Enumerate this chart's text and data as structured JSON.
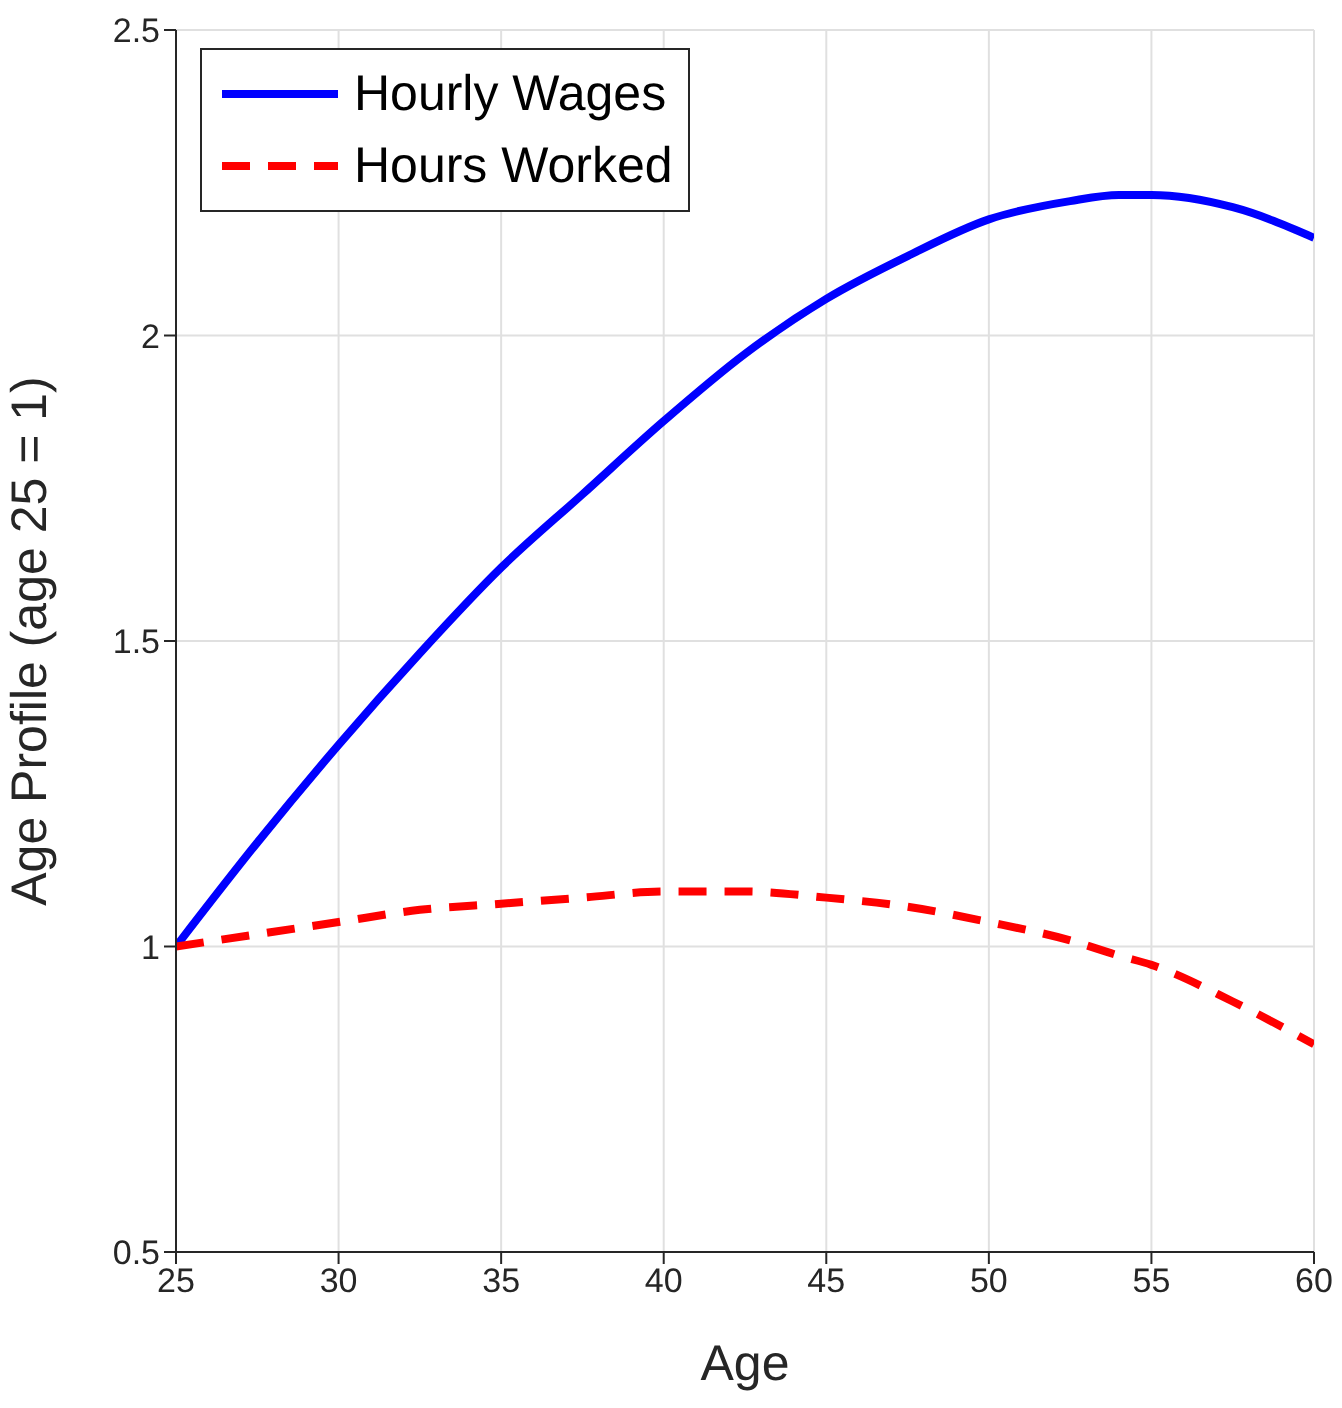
{
  "chart_data": {
    "type": "line",
    "xlabel": "Age",
    "ylabel": "Age Profile  (age 25 = 1)",
    "x": [
      25,
      27.5,
      30,
      32.5,
      35,
      37.5,
      40,
      42.5,
      45,
      47.5,
      50,
      52.5,
      54,
      55,
      57.5,
      60
    ],
    "series": [
      {
        "name": "Hourly Wages",
        "color": "#0000ff",
        "line_style": "solid",
        "values": [
          1.0,
          1.17,
          1.33,
          1.48,
          1.62,
          1.74,
          1.86,
          1.97,
          2.06,
          2.13,
          2.19,
          2.22,
          2.23,
          2.23,
          2.21,
          2.16
        ]
      },
      {
        "name": "Hours Worked",
        "color": "#ff0000",
        "line_style": "dashed",
        "values": [
          1.0,
          1.02,
          1.04,
          1.06,
          1.07,
          1.08,
          1.09,
          1.09,
          1.08,
          1.065,
          1.04,
          1.01,
          0.985,
          0.97,
          0.91,
          0.84
        ]
      }
    ],
    "xlim": [
      25,
      60
    ],
    "xticks": [
      25,
      30,
      35,
      40,
      45,
      50,
      55,
      60
    ],
    "ylim": [
      0.5,
      2.5
    ],
    "yticks": [
      0.5,
      1,
      1.5,
      2,
      2.5
    ],
    "grid": true,
    "legend": "top left",
    "marker": "none"
  }
}
